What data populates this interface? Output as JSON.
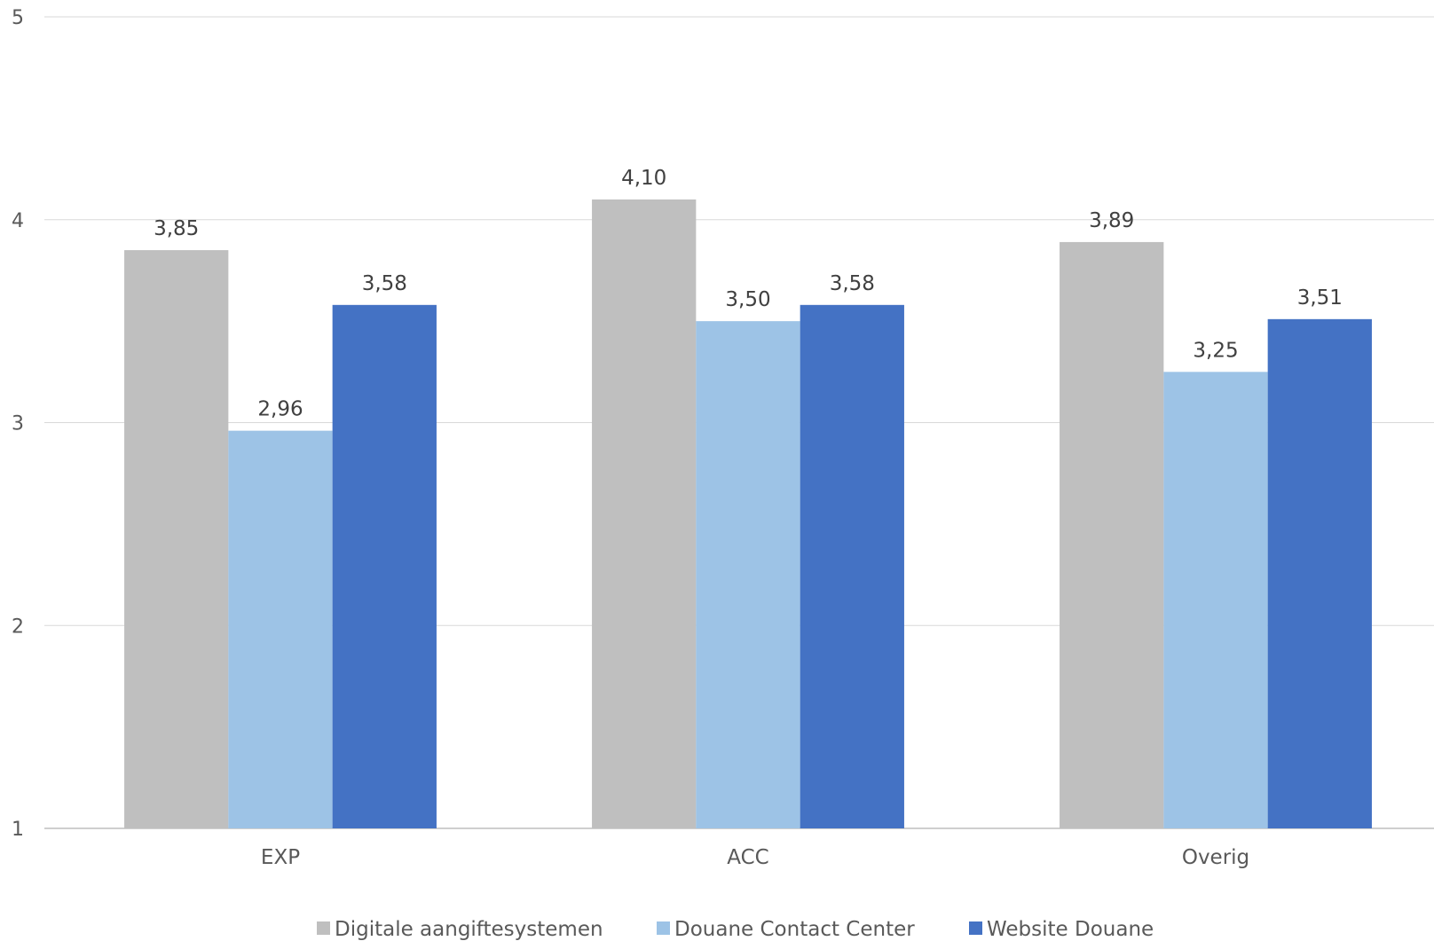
{
  "chart_data": {
    "type": "bar",
    "title": "",
    "xlabel": "",
    "ylabel": "",
    "ylim": [
      1,
      5
    ],
    "yticks": [
      1,
      2,
      3,
      4,
      5
    ],
    "grid": true,
    "legend_position": "bottom",
    "categories": [
      "EXP",
      "ACC",
      "Overig"
    ],
    "series": [
      {
        "name": "Digitale aangiftesystemen",
        "color": "#bfbfbf",
        "values": [
          3.85,
          4.1,
          3.89
        ],
        "labels": [
          "3,85",
          "4,10",
          "3,89"
        ]
      },
      {
        "name": "Douane Contact Center",
        "color": "#9dc3e6",
        "values": [
          2.96,
          3.5,
          3.25
        ],
        "labels": [
          "2,96",
          "3,50",
          "3,25"
        ]
      },
      {
        "name": "Website Douane",
        "color": "#4472c4",
        "values": [
          3.58,
          3.58,
          3.51
        ],
        "labels": [
          "3,58",
          "3,58",
          "3,51"
        ]
      }
    ]
  }
}
